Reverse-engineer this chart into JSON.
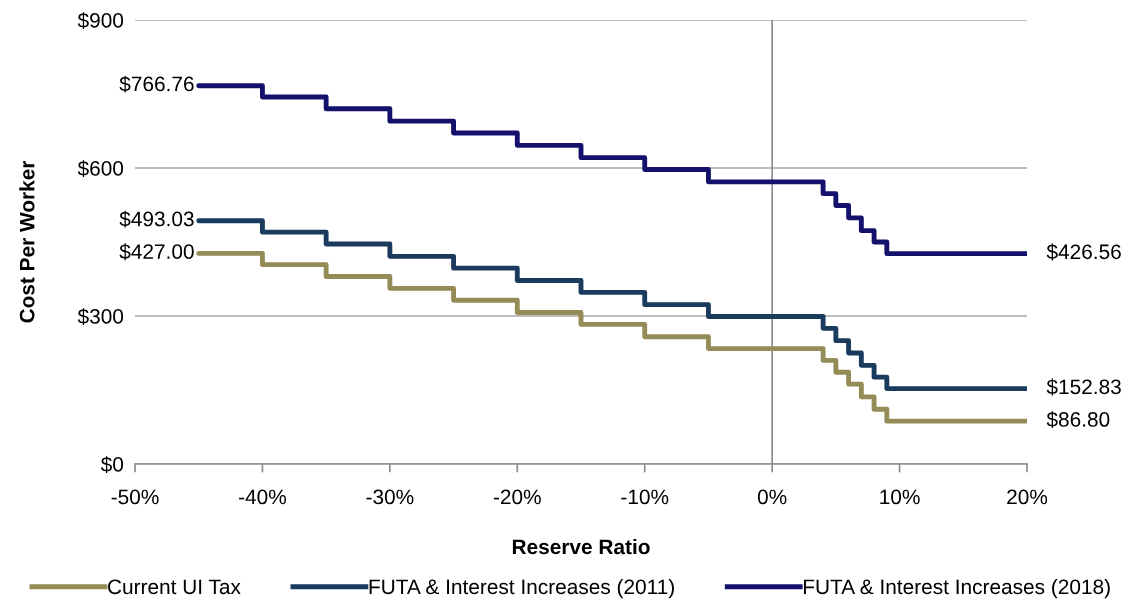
{
  "chart_data": {
    "type": "step",
    "xlabel": "Reserve Ratio",
    "ylabel": "Cost Per Worker",
    "x": [
      -45,
      -40,
      -35,
      -30,
      -25,
      -20,
      -15,
      -10,
      -5,
      4,
      5,
      6,
      7,
      8,
      9,
      20
    ],
    "series": [
      {
        "name": "Current UI Tax",
        "color": "#958b56",
        "values": [
          427.0,
          404,
          380,
          356,
          332,
          307,
          283,
          258,
          234,
          210,
          186,
          162,
          136,
          111,
          86.8,
          86.8
        ],
        "value_labels": [
          "$427.00",
          null,
          null,
          null,
          null,
          null,
          null,
          null,
          null,
          null,
          null,
          null,
          null,
          null,
          null,
          "$86.80"
        ]
      },
      {
        "name": "FUTA & Interest Increases (2011)",
        "color": "#1a3a5e",
        "values": [
          493.03,
          470,
          446,
          421,
          397,
          372,
          348,
          323,
          299,
          275,
          250,
          225,
          200,
          176,
          152.83,
          152.83
        ],
        "value_labels": [
          "$493.03",
          null,
          null,
          null,
          null,
          null,
          null,
          null,
          null,
          null,
          null,
          null,
          null,
          null,
          null,
          "$152.83"
        ]
      },
      {
        "name": "FUTA & Interest Increases (2018)",
        "color": "#13116b",
        "values": [
          766.76,
          744,
          720,
          695,
          671,
          646,
          621,
          597,
          572,
          548,
          524,
          499,
          473,
          450,
          426.56,
          426.56
        ],
        "value_labels": [
          "$766.76",
          null,
          null,
          null,
          null,
          null,
          null,
          null,
          null,
          null,
          null,
          null,
          null,
          null,
          null,
          "$426.56"
        ]
      }
    ],
    "xlim": [
      -50,
      20
    ],
    "xticks": [
      {
        "value": -50,
        "label": "-50%"
      },
      {
        "value": -40,
        "label": "-40%"
      },
      {
        "value": -30,
        "label": "-30%"
      },
      {
        "value": -20,
        "label": "-20%"
      },
      {
        "value": -10,
        "label": "-10%"
      },
      {
        "value": 0,
        "label": "0%"
      },
      {
        "value": 10,
        "label": "10%"
      },
      {
        "value": 20,
        "label": "20%"
      }
    ],
    "ylim": [
      0,
      900
    ],
    "yticks": [
      {
        "value": 0,
        "label": "$0"
      },
      {
        "value": 300,
        "label": "$300"
      },
      {
        "value": 600,
        "label": "$600"
      },
      {
        "value": 900,
        "label": "$900"
      }
    ],
    "ref_lines": [
      {
        "axis": "x",
        "value": 0,
        "color": "#8c8c8c"
      }
    ],
    "grid": "y",
    "legend": "bottom",
    "line_style": "solid",
    "marker": "none"
  }
}
